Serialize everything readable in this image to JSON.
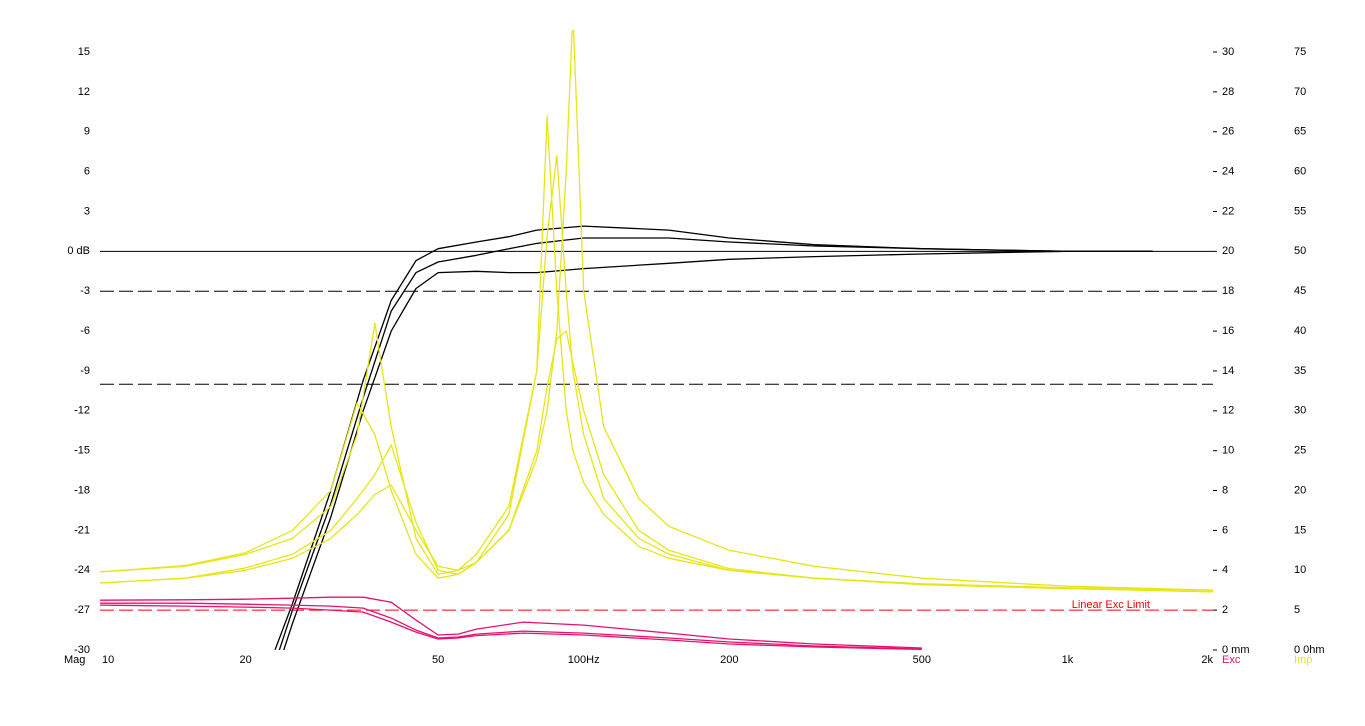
{
  "chart_data": {
    "type": "line",
    "x_scale": "log",
    "xlim": [
      10,
      2000
    ],
    "xticks": [
      10,
      20,
      50,
      {
        "value": 100,
        "label": "100Hz"
      },
      200,
      500,
      {
        "value": 1000,
        "label": "1k"
      },
      {
        "value": 2000,
        "label": "2k"
      }
    ],
    "xgrid": [
      10,
      20,
      30,
      40,
      50,
      60,
      70,
      80,
      90,
      100,
      200,
      300,
      400,
      500,
      600,
      700,
      800,
      900,
      1000,
      2000
    ],
    "ylim": [
      -30,
      15
    ],
    "yticks": [
      15,
      12,
      9,
      6,
      3,
      {
        "value": 0,
        "label": "0 dB"
      },
      -3,
      -6,
      -9,
      -12,
      -15,
      -18,
      -21,
      -24,
      -27,
      -30
    ],
    "ylabel": "Mag",
    "y2lim": [
      0,
      30
    ],
    "y2ticks": [
      30,
      28,
      26,
      24,
      22,
      20,
      18,
      16,
      14,
      12,
      10,
      8,
      6,
      4,
      2,
      {
        "value": 0,
        "label": "0 mm"
      }
    ],
    "y2label": "Exc",
    "y2color": "#e8106e",
    "y3lim": [
      0,
      75
    ],
    "y3ticks": [
      75,
      70,
      65,
      60,
      55,
      50,
      45,
      40,
      35,
      30,
      25,
      20,
      15,
      10,
      5,
      {
        "value": 0,
        "label": "0 0hm"
      }
    ],
    "y3label": "Imp",
    "y3color": "#e6e619",
    "grid": true,
    "reference_lines": [
      {
        "axis": "y",
        "value": 0,
        "style": "solid",
        "color": "#000000"
      },
      {
        "axis": "y",
        "value": -3,
        "style": "dashed",
        "color": "#000000"
      },
      {
        "axis": "y",
        "value": -10,
        "style": "dashed",
        "color": "#000000"
      },
      {
        "axis": "y2",
        "value": 2,
        "style": "dashed",
        "color": "#ff0000",
        "label": "Linear Exc Limit"
      }
    ],
    "series": [
      {
        "axis": "y",
        "color": "#000000",
        "x": [
          23,
          25,
          30,
          35,
          40,
          45,
          50,
          60,
          70,
          80,
          100,
          150,
          200,
          300,
          500,
          700,
          1000,
          1500
        ],
        "values": [
          -30,
          -26.5,
          -18,
          -9.7,
          -3.7,
          -0.7,
          0.2,
          0.7,
          1.1,
          1.6,
          1.9,
          1.6,
          1.0,
          0.5,
          0.2,
          0.1,
          0,
          0
        ]
      },
      {
        "axis": "y",
        "color": "#000000",
        "x": [
          23,
          25,
          30,
          35,
          40,
          45,
          50,
          60,
          70,
          80,
          100,
          150,
          200,
          300,
          500,
          700,
          1000,
          1500
        ],
        "values": [
          -31,
          -27,
          -19,
          -11,
          -4.5,
          -1.6,
          -0.8,
          -0.3,
          0.2,
          0.6,
          1.0,
          1.0,
          0.7,
          0.4,
          0.2,
          0.1,
          0,
          0
        ]
      },
      {
        "axis": "y",
        "color": "#000000",
        "x": [
          23,
          25,
          30,
          35,
          40,
          45,
          50,
          60,
          70,
          80,
          100,
          150,
          200,
          300,
          500,
          700,
          1000,
          1500
        ],
        "values": [
          -32,
          -28,
          -20,
          -12,
          -6,
          -2.8,
          -1.6,
          -1.5,
          -1.6,
          -1.6,
          -1.3,
          -0.9,
          -0.6,
          -0.4,
          -0.2,
          -0.1,
          0,
          0
        ]
      },
      {
        "axis": "y3",
        "color": "#e6e619",
        "x": [
          10,
          15,
          20,
          25,
          30,
          34,
          37,
          40,
          45,
          50,
          55,
          60,
          70,
          80,
          84,
          88,
          92,
          95,
          100,
          110,
          130,
          150,
          200,
          300,
          500,
          1000,
          2000
        ],
        "values": [
          9.8,
          10.5,
          12,
          14,
          18,
          27,
          41,
          28,
          14,
          9.5,
          10,
          12,
          18,
          35,
          67,
          45,
          30,
          25,
          21,
          17,
          13,
          11.5,
          10,
          9,
          8.3,
          7.8,
          7.5
        ]
      },
      {
        "axis": "y3",
        "color": "#e6e619",
        "x": [
          10,
          15,
          20,
          25,
          30,
          34,
          37,
          40,
          45,
          50,
          55,
          60,
          70,
          80,
          84,
          88,
          92,
          95,
          100,
          110,
          130,
          150,
          200,
          300,
          500,
          1000,
          2000
        ],
        "values": [
          9.8,
          10.6,
          12.2,
          15,
          20,
          31,
          27,
          20,
          12,
          9,
          9.5,
          11,
          15,
          24,
          30,
          40,
          60,
          80,
          45,
          28,
          19,
          15.5,
          12.5,
          10.5,
          9,
          8,
          7.5
        ]
      },
      {
        "axis": "y3",
        "color": "#e6e619",
        "x": [
          10,
          15,
          20,
          25,
          30,
          34,
          37,
          40,
          45,
          50,
          55,
          60,
          70,
          80,
          84,
          88,
          92,
          95,
          100,
          110,
          130,
          150,
          200,
          300,
          500,
          1000,
          2000
        ],
        "values": [
          8.4,
          9,
          10.3,
          12,
          15,
          19,
          22,
          25.7,
          16,
          10,
          9.5,
          11,
          17,
          35,
          52,
          62,
          45,
          35,
          27,
          19,
          14,
          12,
          10,
          9,
          8.2,
          7.7,
          7.3
        ]
      },
      {
        "axis": "y3",
        "color": "#e6e619",
        "x": [
          10,
          15,
          20,
          25,
          30,
          34,
          37,
          40,
          45,
          50,
          55,
          60,
          70,
          80,
          84,
          88,
          92,
          95,
          100,
          110,
          130,
          150,
          200,
          300,
          500,
          1000,
          2000
        ],
        "values": [
          8.4,
          9,
          10,
          11.5,
          14,
          17,
          19.5,
          20.7,
          15,
          10.5,
          10,
          11,
          15,
          25,
          33,
          39,
          40,
          36,
          30,
          22,
          15,
          12.5,
          10.2,
          9,
          8.2,
          7.7,
          7.3
        ]
      },
      {
        "axis": "y2",
        "color": "#e8106e",
        "x": [
          10,
          15,
          20,
          25,
          30,
          35,
          40,
          45,
          50,
          55,
          60,
          75,
          100,
          150,
          200,
          300,
          500
        ],
        "values": [
          2.5,
          2.52,
          2.55,
          2.6,
          2.65,
          2.65,
          2.4,
          1.5,
          0.75,
          0.8,
          1.05,
          1.4,
          1.25,
          0.85,
          0.55,
          0.3,
          0.1
        ]
      },
      {
        "axis": "y2",
        "color": "#e8106e",
        "x": [
          10,
          15,
          20,
          25,
          30,
          35,
          40,
          45,
          50,
          55,
          60,
          75,
          100,
          150,
          200,
          300,
          500
        ],
        "values": [
          2.35,
          2.35,
          2.3,
          2.25,
          2.2,
          2.1,
          1.6,
          1.0,
          0.6,
          0.65,
          0.8,
          0.95,
          0.85,
          0.6,
          0.4,
          0.2,
          0.05
        ]
      },
      {
        "axis": "y2",
        "color": "#e8106e",
        "x": [
          10,
          15,
          20,
          25,
          30,
          35,
          40,
          45,
          50,
          55,
          60,
          75,
          100,
          150,
          200,
          300,
          500
        ],
        "values": [
          2.25,
          2.2,
          2.15,
          2.1,
          2.0,
          1.9,
          1.4,
          0.9,
          0.55,
          0.6,
          0.72,
          0.85,
          0.75,
          0.5,
          0.3,
          0.15,
          0.03
        ]
      }
    ]
  }
}
